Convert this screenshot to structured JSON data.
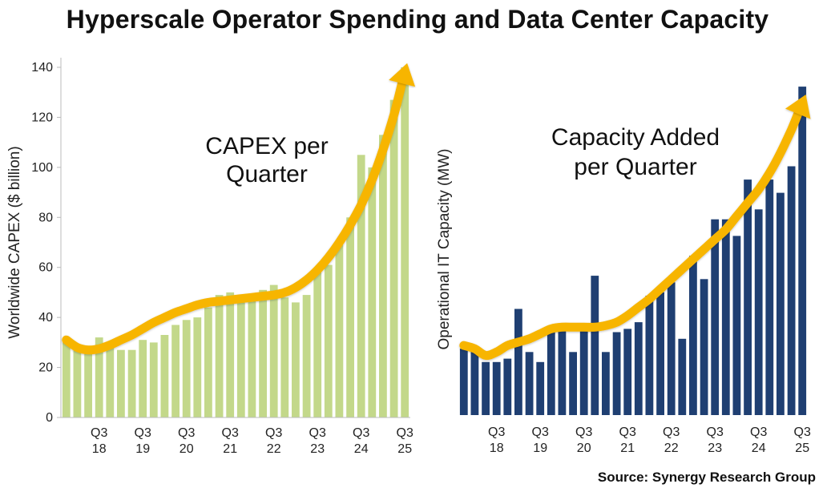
{
  "page": {
    "title": "Hyperscale Operator Spending and Data Center Capacity",
    "source": "Source: Synergy Research Group"
  },
  "colors": {
    "capex_bar": "#c3d88a",
    "capacity_bar": "#1f3f72",
    "arrow": "#f7b500",
    "axis": "#bbbbbb"
  },
  "chart_data": [
    {
      "id": "capex",
      "type": "bar",
      "title": "CAPEX per Quarter",
      "annotation_lines": [
        "CAPEX per",
        "Quarter"
      ],
      "ylabel": "Worldwide CAPEX ($ billion)",
      "xlabel": "",
      "ylim": [
        0,
        140
      ],
      "yticks": [
        0,
        20,
        40,
        60,
        80,
        100,
        120,
        140
      ],
      "grid": false,
      "x_tick_labels": [
        {
          "index": 3,
          "lines": [
            "Q3",
            "18"
          ]
        },
        {
          "index": 7,
          "lines": [
            "Q3",
            "19"
          ]
        },
        {
          "index": 11,
          "lines": [
            "Q3",
            "20"
          ]
        },
        {
          "index": 15,
          "lines": [
            "Q3",
            "21"
          ]
        },
        {
          "index": 19,
          "lines": [
            "Q3",
            "22"
          ]
        },
        {
          "index": 23,
          "lines": [
            "Q3",
            "23"
          ]
        },
        {
          "index": 27,
          "lines": [
            "Q3",
            "24"
          ]
        },
        {
          "index": 31,
          "lines": [
            "Q3",
            "25"
          ]
        }
      ],
      "values": [
        30,
        28,
        27,
        32,
        28,
        27,
        27,
        31,
        30,
        33,
        37,
        39,
        40,
        44,
        49,
        50,
        46,
        47,
        51,
        53,
        48,
        46,
        49,
        58,
        61,
        69,
        80,
        105,
        100,
        113,
        127,
        140
      ],
      "trend": [
        31,
        28,
        27,
        27.5,
        29,
        31,
        33,
        35.5,
        38,
        40,
        42,
        43.5,
        45,
        46,
        46.5,
        47,
        47.5,
        48,
        48.5,
        49,
        50,
        52,
        55,
        59,
        64,
        70,
        77,
        85,
        95,
        107,
        121,
        138
      ]
    },
    {
      "id": "capacity",
      "type": "bar",
      "title": "Capacity Added per Quarter",
      "annotation_lines": [
        "Capacity Added",
        "per Quarter"
      ],
      "ylabel": "Operational IT Capacity (MW)",
      "xlabel": "",
      "ylim": [
        0,
        100
      ],
      "yticks": [],
      "grid": false,
      "x_tick_labels": [
        {
          "index": 3,
          "lines": [
            "Q3",
            "18"
          ]
        },
        {
          "index": 7,
          "lines": [
            "Q3",
            "19"
          ]
        },
        {
          "index": 11,
          "lines": [
            "Q3",
            "20"
          ]
        },
        {
          "index": 15,
          "lines": [
            "Q3",
            "21"
          ]
        },
        {
          "index": 19,
          "lines": [
            "Q3",
            "22"
          ]
        },
        {
          "index": 23,
          "lines": [
            "Q3",
            "23"
          ]
        },
        {
          "index": 27,
          "lines": [
            "Q3",
            "24"
          ]
        },
        {
          "index": 31,
          "lines": [
            "Q3",
            "25"
          ]
        }
      ],
      "values": [
        20,
        20,
        16,
        16,
        17,
        32,
        19,
        16,
        26,
        26,
        19,
        26,
        42,
        19,
        25,
        26,
        28,
        36,
        37,
        40,
        23,
        48,
        41,
        59,
        59,
        54,
        71,
        62,
        71,
        67,
        75,
        99
      ],
      "trend": [
        21,
        20,
        18,
        19,
        21,
        22,
        23,
        24.5,
        26,
        26.5,
        26.5,
        26.5,
        26.5,
        27,
        28,
        30,
        32.5,
        35,
        38,
        41,
        44,
        47,
        50,
        53,
        56,
        60,
        64,
        68,
        73,
        79,
        86,
        94
      ]
    }
  ]
}
